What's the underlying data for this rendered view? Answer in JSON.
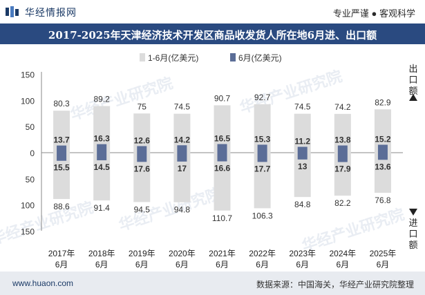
{
  "header": {
    "brand": "华经情报网",
    "tagline": "专业严谨 ● 客观科学"
  },
  "title": "2017-2025年天津经济技术开发区商品收发货人所在地6月进、出口额",
  "footer": {
    "url": "www.huaon.com",
    "source": "数据来源：中国海关，华经产业研究院整理"
  },
  "watermark": "华经产业研究院",
  "colors": {
    "bar_ytd": "#dcdcdc",
    "bar_month": "#5b6d97",
    "title_bg": "#2a4a80",
    "footer_bg": "#e8ebf0"
  },
  "chart_data": {
    "type": "bar",
    "categories": [
      "2017年\n6月",
      "2018年\n6月",
      "2019年\n6月",
      "2020年\n6月",
      "2021年\n6月",
      "2022年\n6月",
      "2023年\n6月",
      "2024年\n6月",
      "2025年\n6月"
    ],
    "legend": [
      "1-6月(亿美元)",
      "6月(亿美元)"
    ],
    "legend_position": "top",
    "export": {
      "label": "出口额",
      "ytd": [
        80.3,
        89.2,
        75,
        74.5,
        90.7,
        92.7,
        74.5,
        74.2,
        82.9
      ],
      "month": [
        13.7,
        16.3,
        12.6,
        14.2,
        16.5,
        15.3,
        11.2,
        13.8,
        15.2
      ]
    },
    "import": {
      "label": "进口额",
      "ytd": [
        88.6,
        91.4,
        94.5,
        94.8,
        110.7,
        106.3,
        84.8,
        82.2,
        76.8
      ],
      "month": [
        15.5,
        14.5,
        17.6,
        17,
        16.6,
        17.7,
        13,
        17.9,
        13.6
      ]
    },
    "y_ticks": [
      "150",
      "100",
      "50",
      "0",
      "50",
      "100",
      "150"
    ],
    "ylim": [
      -150,
      150
    ],
    "grid": false
  }
}
